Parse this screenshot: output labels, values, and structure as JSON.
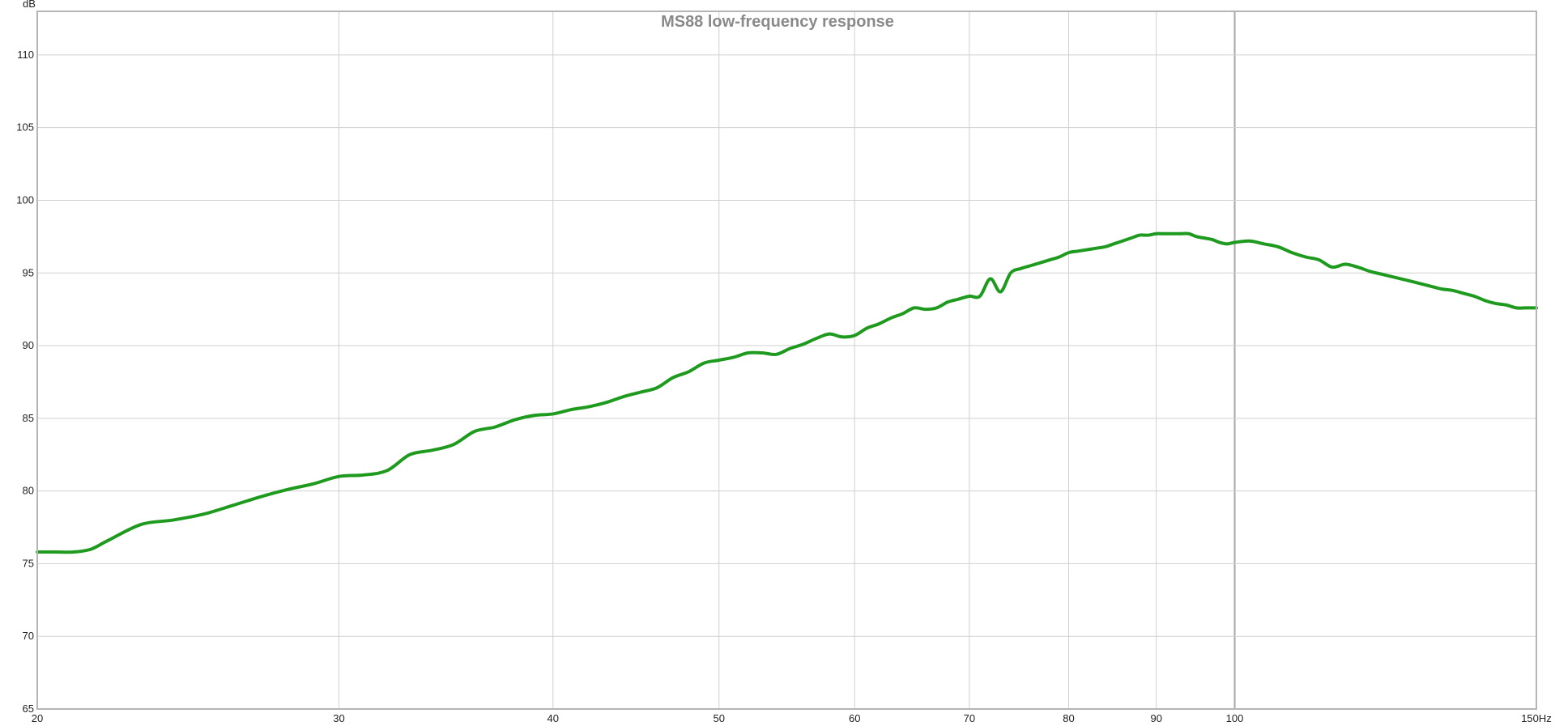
{
  "chart_data": {
    "type": "line",
    "title": "MS88 low-frequency response",
    "ylabel": "dB",
    "xunit": "Hz",
    "xscale": "log",
    "xlim": [
      20,
      150
    ],
    "ylim": [
      65,
      113
    ],
    "grid": true,
    "x_ticks": [
      20,
      30,
      40,
      50,
      60,
      70,
      80,
      90,
      100,
      150
    ],
    "x_tick_labels": [
      "20",
      "30",
      "40",
      "50",
      "60",
      "70",
      "80",
      "90",
      "100",
      "150Hz"
    ],
    "y_ticks": [
      65,
      70,
      75,
      80,
      85,
      90,
      95,
      100,
      105,
      110
    ],
    "y_tick_labels": [
      "65",
      "70",
      "75",
      "80",
      "85",
      "90",
      "95",
      "100",
      "105",
      "110"
    ],
    "line_color": "#1e9a1e",
    "series": [
      {
        "x": [
          20,
          20.5,
          21,
          21.5,
          22,
          23,
          24,
          25,
          26,
          27,
          28,
          29,
          30,
          31,
          32,
          33,
          34,
          35,
          36,
          37,
          38,
          39,
          40,
          41,
          42,
          43,
          44,
          45,
          46,
          47,
          48,
          49,
          50,
          51,
          52,
          53,
          54,
          55,
          56,
          57,
          58,
          59,
          60,
          61,
          62,
          63,
          64,
          65,
          66,
          67,
          68,
          69,
          70,
          71,
          72,
          73,
          74,
          75,
          76,
          77,
          78,
          79,
          80,
          81,
          82,
          83,
          84,
          85,
          86,
          87,
          88,
          89,
          90,
          91,
          92,
          93,
          94,
          95,
          96,
          97,
          98,
          99,
          100,
          102,
          104,
          106,
          108,
          110,
          112,
          114,
          116,
          118,
          120,
          122,
          124,
          126,
          128,
          130,
          132,
          134,
          136,
          138,
          140,
          142,
          144,
          146,
          148,
          150
        ],
        "y": [
          75.8,
          75.8,
          75.8,
          76.0,
          76.6,
          77.7,
          78.0,
          78.4,
          79.0,
          79.6,
          80.1,
          80.5,
          81.0,
          81.1,
          81.4,
          82.5,
          82.8,
          83.2,
          84.1,
          84.4,
          84.9,
          85.2,
          85.3,
          85.6,
          85.8,
          86.1,
          86.5,
          86.8,
          87.1,
          87.8,
          88.2,
          88.8,
          89.0,
          89.2,
          89.5,
          89.5,
          89.4,
          89.8,
          90.1,
          90.5,
          90.8,
          90.6,
          90.7,
          91.2,
          91.5,
          91.9,
          92.2,
          92.6,
          92.5,
          92.6,
          93.0,
          93.2,
          93.4,
          93.4,
          94.6,
          93.7,
          95.0,
          95.3,
          95.5,
          95.7,
          95.9,
          96.1,
          96.4,
          96.5,
          96.6,
          96.7,
          96.8,
          97.0,
          97.2,
          97.4,
          97.6,
          97.6,
          97.7,
          97.7,
          97.7,
          97.7,
          97.7,
          97.5,
          97.4,
          97.3,
          97.1,
          97.0,
          97.1,
          97.2,
          97.0,
          96.8,
          96.4,
          96.1,
          95.9,
          95.4,
          95.6,
          95.4,
          95.1,
          94.9,
          94.7,
          94.5,
          94.3,
          94.1,
          93.9,
          93.8,
          93.6,
          93.4,
          93.1,
          92.9,
          92.8,
          92.6,
          92.6,
          92.6
        ]
      }
    ]
  }
}
